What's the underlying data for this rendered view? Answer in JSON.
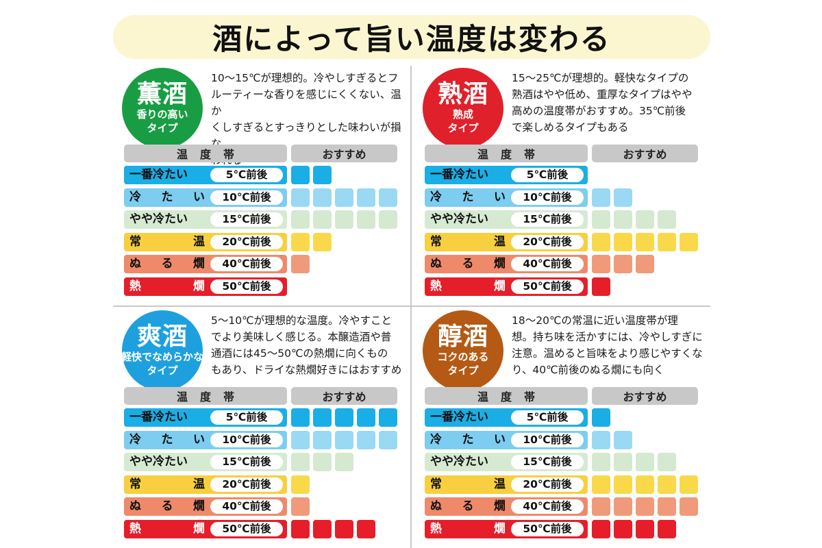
{
  "title": "酒によって旨い温度は変わる",
  "header": {
    "temp": "温度帯",
    "rec": "おすすめ"
  },
  "levels": [
    {
      "label_parts": [
        "一番冷たい"
      ],
      "temp": "5℃前後",
      "color": "#1aaee6",
      "cell_color": "#1aaee6",
      "text_color": "#111111"
    },
    {
      "label_parts": [
        "冷",
        "た",
        "い"
      ],
      "temp": "10℃前後",
      "color": "#7ccdf0",
      "cell_color": "#9ad9f4",
      "text_color": "#111111"
    },
    {
      "label_parts": [
        "やや冷たい"
      ],
      "temp": "15℃前後",
      "color": "#d6ead2",
      "cell_color": "#d4e9d0",
      "text_color": "#111111"
    },
    {
      "label_parts": [
        "常",
        "温"
      ],
      "temp": "20℃前後",
      "color": "#f7cf3f",
      "cell_color": "#f9d94a",
      "text_color": "#111111"
    },
    {
      "label_parts": [
        "ぬ",
        "る",
        "燗"
      ],
      "temp": "40℃前後",
      "color": "#ee8a6a",
      "cell_color": "#f09a7a",
      "text_color": "#111111"
    },
    {
      "label_parts": [
        "熱",
        "燗"
      ],
      "temp": "50℃前後",
      "color": "#e51e2a",
      "cell_color": "#e51e2a",
      "text_color": "#ffffff"
    }
  ],
  "panels": [
    {
      "name": "薫酒",
      "sub": [
        "香りの高い",
        "タイプ"
      ],
      "badge_color": "#199d44",
      "desc": [
        "10〜15℃が理想的。冷やしすぎるとフ",
        "ルーティーな香りを感じにくくない、温か",
        "くしすぎるとすっきりとした味わいが損な",
        "われる"
      ]
    },
    {
      "name": "熟酒",
      "sub": [
        "熟成",
        "タイプ"
      ],
      "badge_color": "#e0202a",
      "desc": [
        "15〜25℃が理想的。軽快なタイプの",
        "熟酒はやや低め、重厚なタイプはやや",
        "高めの温度帯がおすすめ。35℃前後",
        "で楽しめるタイプもある"
      ]
    },
    {
      "name": "爽酒",
      "sub": [
        "軽快でなめらかな",
        "タイプ"
      ],
      "badge_color": "#1ea0df",
      "desc": [
        "5〜10℃が理想的な温度。冷やすこと",
        "でより美味しく感じる。本醸造酒や普",
        "通酒には45〜50℃の熱燗に向くもの",
        "もあり、ドライな熱燗好きにはおすすめ"
      ]
    },
    {
      "name": "醇酒",
      "sub": [
        "コクのある",
        "タイプ"
      ],
      "badge_color": "#b45a14",
      "desc": [
        "18〜20℃の常温に近い温度帯が理",
        "想。持ち味を活かすには、冷やしすぎに",
        "注意。温めると旨味をより感じやすくな",
        "り、40℃前後のぬる燗にも向く"
      ]
    }
  ],
  "chart_data": [
    {
      "type": "bar",
      "title": "薫酒",
      "categories": [
        "一番冷たい 5℃前後",
        "冷たい 10℃前後",
        "やや冷たい 15℃前後",
        "常温 20℃前後",
        "ぬる燗 40℃前後",
        "熱燗 50℃前後"
      ],
      "values": [
        2,
        5,
        5,
        2,
        1,
        0
      ],
      "ylim": [
        0,
        5
      ]
    },
    {
      "type": "bar",
      "title": "熟酒",
      "categories": [
        "一番冷たい 5℃前後",
        "冷たい 10℃前後",
        "やや冷たい 15℃前後",
        "常温 20℃前後",
        "ぬる燗 40℃前後",
        "熱燗 50℃前後"
      ],
      "values": [
        0,
        2,
        4,
        5,
        3,
        1
      ],
      "ylim": [
        0,
        5
      ]
    },
    {
      "type": "bar",
      "title": "爽酒",
      "categories": [
        "一番冷たい 5℃前後",
        "冷たい 10℃前後",
        "やや冷たい 15℃前後",
        "常温 20℃前後",
        "ぬる燗 40℃前後",
        "熱燗 50℃前後"
      ],
      "values": [
        5,
        5,
        3,
        1,
        1,
        4
      ],
      "ylim": [
        0,
        5
      ]
    },
    {
      "type": "bar",
      "title": "醇酒",
      "categories": [
        "一番冷たい 5℃前後",
        "冷たい 10℃前後",
        "やや冷たい 15℃前後",
        "常温 20℃前後",
        "ぬる燗 40℃前後",
        "熱燗 50℃前後"
      ],
      "values": [
        1,
        2,
        4,
        5,
        5,
        4
      ],
      "ylim": [
        0,
        5
      ]
    }
  ]
}
